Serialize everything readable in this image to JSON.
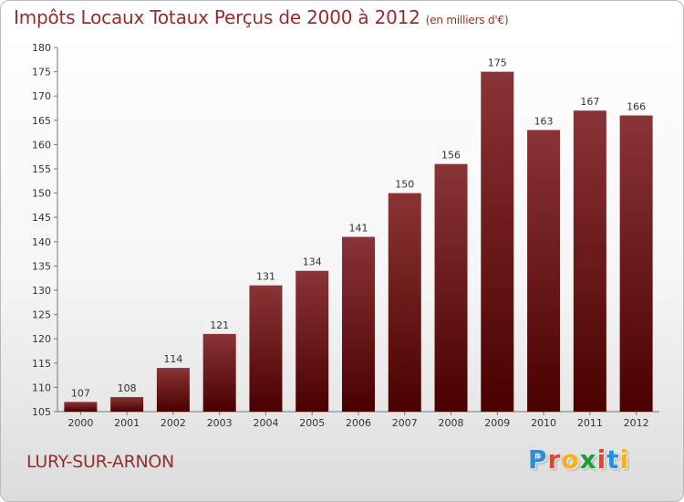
{
  "title": "Impôts Locaux Totaux Perçus de 2000 à 2012",
  "unit": "(en milliers d'€)",
  "commune": "LURY-SUR-ARNON",
  "logo": {
    "letters": [
      "P",
      "r",
      "o",
      "x",
      "i",
      "t",
      "i"
    ],
    "colors": [
      "#2a8fd6",
      "#e8462a",
      "#f3b21b",
      "#1a9e3e",
      "#e8462a",
      "#2a8fd6",
      "#f3b21b"
    ]
  },
  "chart_data": {
    "type": "bar",
    "categories": [
      "2000",
      "2001",
      "2002",
      "2003",
      "2004",
      "2005",
      "2006",
      "2007",
      "2008",
      "2009",
      "2010",
      "2011",
      "2012"
    ],
    "values": [
      107,
      108,
      114,
      121,
      131,
      134,
      141,
      150,
      156,
      175,
      163,
      167,
      166
    ],
    "ylim": [
      105,
      180
    ],
    "yticks": [
      105,
      110,
      115,
      120,
      125,
      130,
      135,
      140,
      145,
      150,
      155,
      160,
      165,
      170,
      175,
      180
    ],
    "grid": false,
    "bar_color_top": "#8a3436",
    "bar_color_bottom": "#4a0000",
    "data_labels": true
  }
}
